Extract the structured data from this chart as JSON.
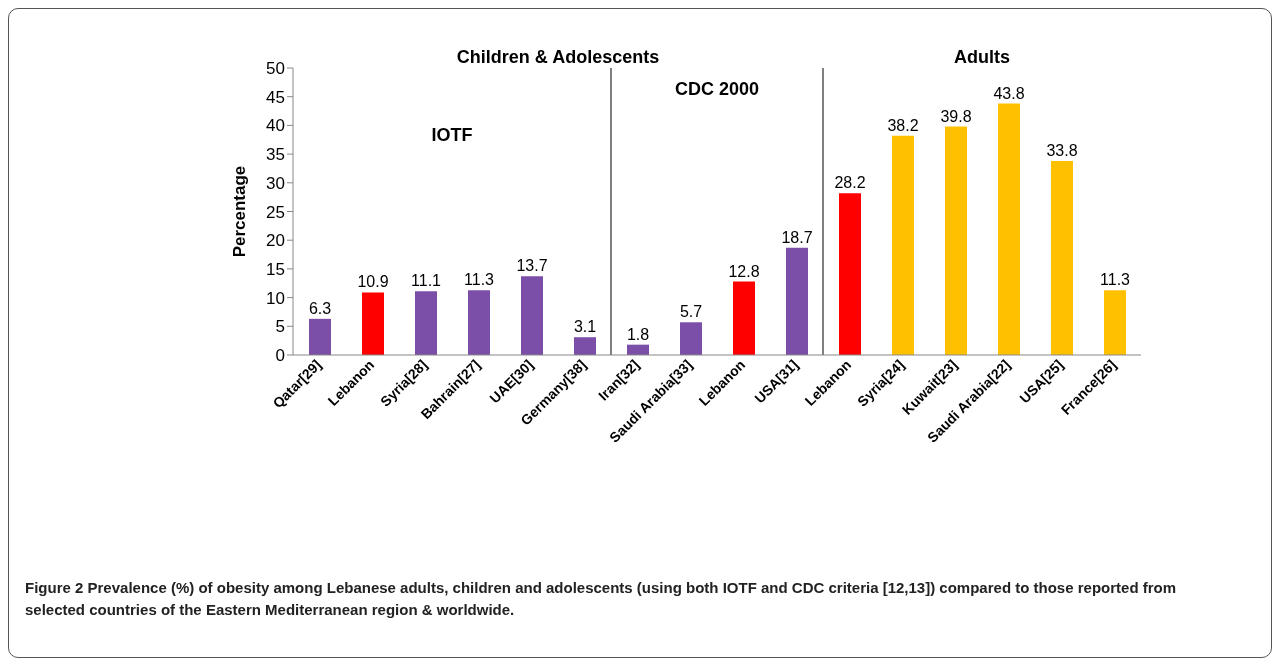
{
  "chart_data": {
    "type": "bar",
    "ylabel": "Percentage",
    "categories": [
      "Qatar[29]",
      "Lebanon",
      "Syria[28]",
      "Bahrain[27]",
      "UAE[30]",
      "Germany[38]",
      "Iran[32]",
      "Saudi Arabia[33]",
      "Lebanon",
      "USA[31]",
      "Lebanon",
      "Syria[24]",
      "Kuwait[23]",
      "Saudi Arabia[22]",
      "USA[25]",
      "France[26]"
    ],
    "values": [
      6.3,
      10.9,
      11.1,
      11.3,
      13.7,
      3.1,
      1.8,
      5.7,
      12.8,
      18.7,
      28.2,
      38.2,
      39.8,
      43.8,
      33.8,
      11.3
    ],
    "colors": [
      "#7b4fa8",
      "#ff0000",
      "#7b4fa8",
      "#7b4fa8",
      "#7b4fa8",
      "#7b4fa8",
      "#7b4fa8",
      "#7b4fa8",
      "#ff0000",
      "#7b4fa8",
      "#ff0000",
      "#ffc000",
      "#ffc000",
      "#ffc000",
      "#ffc000",
      "#ffc000"
    ],
    "ylim": [
      0,
      50
    ],
    "yticks": [
      0,
      5,
      10,
      15,
      20,
      25,
      30,
      35,
      40,
      45,
      50
    ],
    "grid": false,
    "data_labels": true,
    "annotations": [
      "Children & Adolescents",
      "Adults",
      "IOTF",
      "CDC 2000",
      "Figure 2 Prevalence (%) of obesity among Lebanese adults, children and adolescents (using both IOTF and CDC criteria [12,13]) compared to those reported from selected countries of the Eastern Mediterranean region & worldwide."
    ]
  }
}
